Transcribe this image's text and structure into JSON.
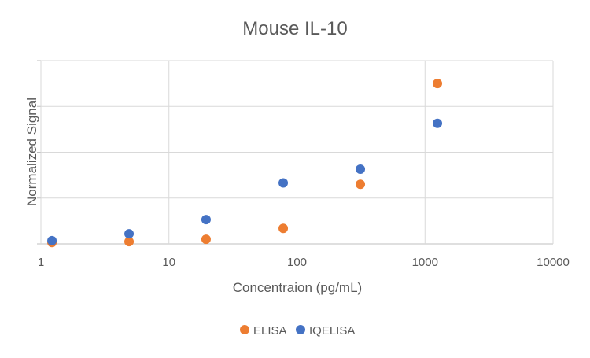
{
  "chart_data": {
    "type": "scatter",
    "title": "Mouse IL-10",
    "xlabel": "Concentraion (pg/mL)",
    "ylabel": "Normalized Signal",
    "x_scale": "log",
    "xlim": [
      1,
      10000
    ],
    "x_ticks": [
      "1",
      "10",
      "100",
      "1000",
      "10000"
    ],
    "ylim": [
      0,
      4
    ],
    "grid": true,
    "legend_position": "bottom",
    "series": [
      {
        "name": "ELISA",
        "color": "#ED7D31",
        "x": [
          1.22,
          4.88,
          19.5,
          78.1,
          312.5,
          1250
        ],
        "y": [
          0.03,
          0.05,
          0.1,
          0.34,
          1.3,
          3.5
        ]
      },
      {
        "name": "IQELISA",
        "color": "#4472C4",
        "x": [
          1.22,
          4.88,
          19.5,
          78.1,
          312.5,
          1250
        ],
        "y": [
          0.07,
          0.22,
          0.53,
          1.33,
          1.63,
          2.63
        ]
      }
    ]
  }
}
